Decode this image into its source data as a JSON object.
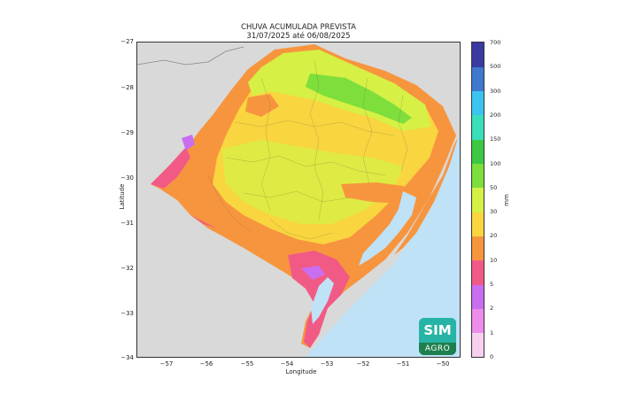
{
  "title_line1": "CHUVA ACUMULADA PREVISTA",
  "title_line2": "31/07/2025 até 06/08/2025",
  "xlabel": "Longitude",
  "ylabel": "Latitude",
  "x_ticks": [
    "−57",
    "−56",
    "−55",
    "−54",
    "−53",
    "−52",
    "−51",
    "−50"
  ],
  "y_ticks": [
    "−27",
    "−28",
    "−29",
    "−30",
    "−31",
    "−32",
    "−33",
    "−34"
  ],
  "colorbar": {
    "unit": "mm",
    "levels": [
      "0",
      "1",
      "2",
      "5",
      "10",
      "20",
      "30",
      "50",
      "100",
      "150",
      "200",
      "300",
      "500",
      "700"
    ],
    "colors": [
      "#ffffff",
      "#f7d0ee",
      "#ee8cec",
      "#c96ef0",
      "#f25a86",
      "#f7953e",
      "#f9d540",
      "#d6f045",
      "#7ede3c",
      "#3cc842",
      "#38dfb9",
      "#3cc4f0",
      "#3e78cf",
      "#3a3aa1"
    ]
  },
  "colors": {
    "land_outside": "#d9d9d9",
    "ocean": "#bfe2f7",
    "lagoon": "#bfe2f7"
  },
  "logo": {
    "top_text": "SIM",
    "bottom_text": "AGRO"
  },
  "map_legend_note": ""
}
